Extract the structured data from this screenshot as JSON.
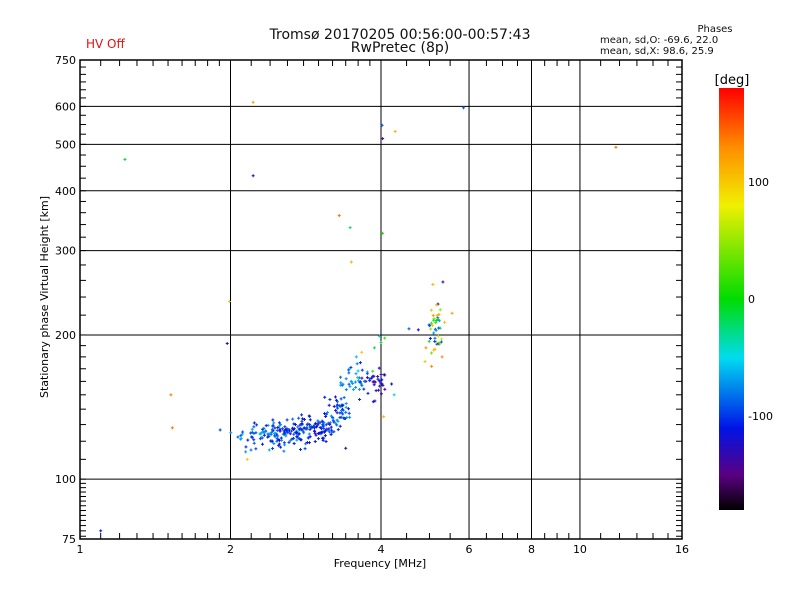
{
  "chart_data": {
    "type": "scatter",
    "title": "Tromsø 20170205 00:56:00-00:57:43",
    "subtitle": "RwPretec (8p)",
    "status": "HV Off",
    "stats": {
      "header": "Phases",
      "line_o": "mean, sd,O: -69.6, 22.0",
      "line_x": "mean, sd,X:  98.6, 25.9"
    },
    "xlabel": "Frequency [MHz]",
    "ylabel": "Stationary phase Virtual Height [km]",
    "xscale": "log",
    "yscale": "log",
    "xlim": [
      1,
      16
    ],
    "ylim": [
      75,
      750
    ],
    "xticks": [
      1,
      2,
      4,
      6,
      8,
      10,
      16
    ],
    "yticks": [
      75,
      100,
      200,
      300,
      400,
      500,
      600,
      750
    ],
    "grid": true,
    "colorbar": {
      "label": "[deg]",
      "range": [
        -180,
        180
      ],
      "ticks": [
        100,
        0,
        -100
      ]
    },
    "points": [
      {
        "x": 1.1,
        "y": 78,
        "c": -110
      },
      {
        "x": 1.23,
        "y": 465,
        "c": -10
      },
      {
        "x": 1.52,
        "y": 150,
        "c": 135
      },
      {
        "x": 1.53,
        "y": 128,
        "c": 140
      },
      {
        "x": 1.97,
        "y": 192,
        "c": -130
      },
      {
        "x": 1.99,
        "y": 235,
        "c": 100
      },
      {
        "x": 2.22,
        "y": 430,
        "c": -130
      },
      {
        "x": 2.22,
        "y": 612,
        "c": 120
      },
      {
        "x": 2.16,
        "y": 110,
        "c": 100
      },
      {
        "x": 3.3,
        "y": 355,
        "c": 140
      },
      {
        "x": 3.47,
        "y": 335,
        "c": -20
      },
      {
        "x": 3.49,
        "y": 284,
        "c": 110
      },
      {
        "x": 3.4,
        "y": 116,
        "c": -140
      },
      {
        "x": 4.03,
        "y": 326,
        "c": 10
      },
      {
        "x": 4.02,
        "y": 548,
        "c": -90
      },
      {
        "x": 4.03,
        "y": 514,
        "c": -140
      },
      {
        "x": 4.27,
        "y": 532,
        "c": 110
      },
      {
        "x": 4.05,
        "y": 135,
        "c": 110
      },
      {
        "x": 4.25,
        "y": 150,
        "c": -40
      },
      {
        "x": 5.85,
        "y": 596,
        "c": -90
      },
      {
        "x": 11.8,
        "y": 493,
        "c": 140
      },
      {
        "x": 5.08,
        "y": 255,
        "c": 110
      },
      {
        "x": 5.32,
        "y": 258,
        "c": -130
      },
      {
        "x": 5.2,
        "y": 232,
        "c": -130
      },
      {
        "x": 5.55,
        "y": 222,
        "c": 120
      },
      {
        "x": 4.75,
        "y": 205,
        "c": -120
      },
      {
        "x": 4.92,
        "y": 188,
        "c": 130
      },
      {
        "x": 5.1,
        "y": 186,
        "c": 100
      },
      {
        "x": 5.3,
        "y": 180,
        "c": 130
      },
      {
        "x": 5.05,
        "y": 172,
        "c": 130
      },
      {
        "x": 4.9,
        "y": 176,
        "c": 100
      },
      {
        "x": 4.55,
        "y": 206,
        "c": -90
      },
      {
        "x": 4.07,
        "y": 197,
        "c": 20
      },
      {
        "x": 3.97,
        "y": 199,
        "c": -60
      },
      {
        "x": 4.0,
        "y": 193,
        "c": -10
      },
      {
        "x": 3.88,
        "y": 188,
        "c": -20
      },
      {
        "x": 3.66,
        "y": 184,
        "c": 100
      },
      {
        "x": 3.57,
        "y": 180,
        "c": -60
      },
      {
        "x": 4.07,
        "y": 165,
        "c": -140
      },
      {
        "x": 4.2,
        "y": 158,
        "c": -120
      },
      {
        "x": 3.8,
        "y": 162,
        "c": -100
      },
      {
        "x": 3.85,
        "y": 168,
        "c": 20
      },
      {
        "x": 3.73,
        "y": 160,
        "c": -120
      }
    ],
    "clusters": [
      {
        "cx": 2.5,
        "cy": 124,
        "sx": 0.28,
        "sy": 5,
        "n": 130,
        "cmin": -120,
        "cmax": -60,
        "seed": 3
      },
      {
        "cx": 2.9,
        "cy": 128,
        "sx": 0.28,
        "sy": 5,
        "n": 110,
        "cmin": -130,
        "cmax": -80,
        "seed": 7
      },
      {
        "cx": 3.3,
        "cy": 140,
        "sx": 0.15,
        "sy": 6,
        "n": 45,
        "cmin": -130,
        "cmax": -60,
        "seed": 11
      },
      {
        "cx": 3.5,
        "cy": 158,
        "sx": 0.15,
        "sy": 8,
        "n": 35,
        "cmin": -100,
        "cmax": -50,
        "seed": 13
      },
      {
        "cx": 3.9,
        "cy": 160,
        "sx": 0.15,
        "sy": 10,
        "n": 30,
        "cmin": -150,
        "cmax": -100,
        "seed": 17
      },
      {
        "cx": 5.15,
        "cy": 205,
        "sx": 0.12,
        "sy": 14,
        "n": 38,
        "cmin": -140,
        "cmax": 130,
        "seed": 19
      }
    ]
  }
}
